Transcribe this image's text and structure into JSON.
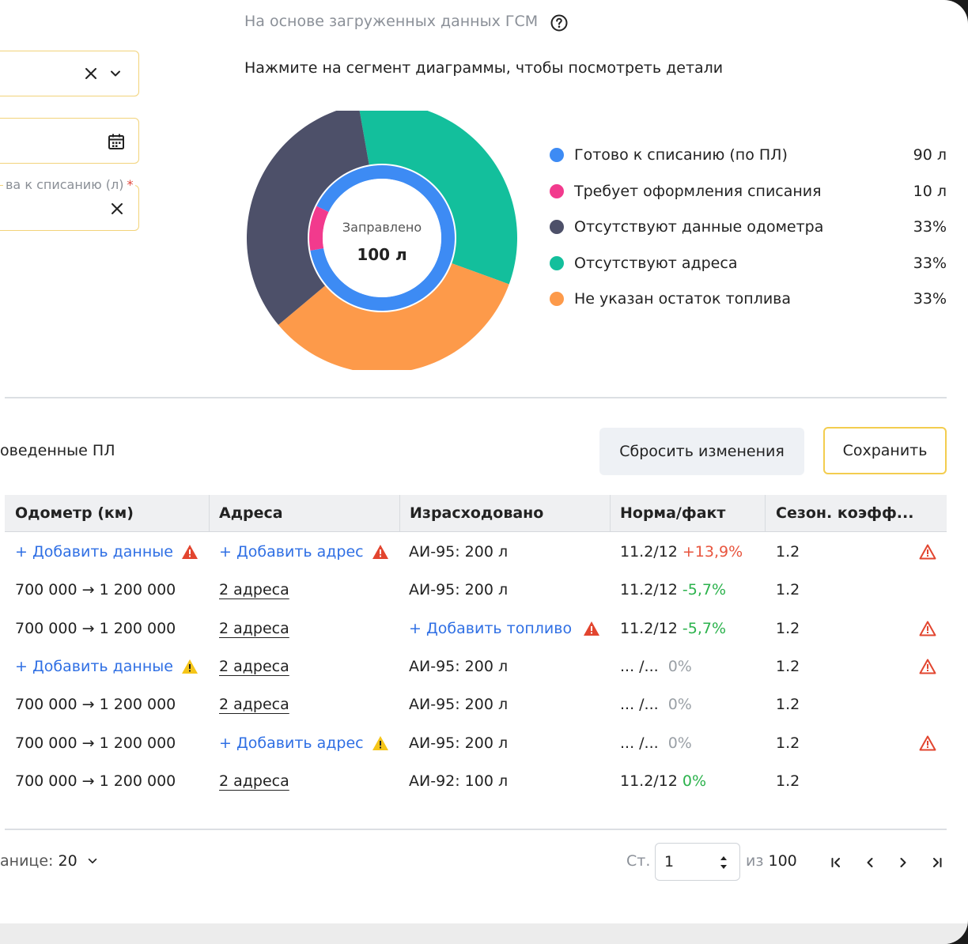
{
  "filters": {
    "field3_label": "ва к списанию (л)",
    "required_mark": "*"
  },
  "header": {
    "hint": "На основе загруженных данных ГСМ",
    "instruction": "Нажмите на сегмент диаграммы, чтобы посмотреть детали"
  },
  "donut": {
    "center_label": "Заправлено",
    "center_value": "100 л",
    "inner": [
      {
        "name": "Готово к списанию (по ПЛ)",
        "value": 90,
        "color": "#3d8bf4"
      },
      {
        "name": "Требует оформления списания",
        "value": 10,
        "color": "#f23a8d"
      }
    ],
    "outer": [
      {
        "name": "Отсутствуют адреса",
        "value": 33,
        "color": "#13bf9c"
      },
      {
        "name": "Не указан остаток топлива",
        "value": 33,
        "color": "#fd9a4a"
      },
      {
        "name": "Отсутствуют данные одометра",
        "value": 33,
        "color": "#4d5069"
      }
    ]
  },
  "legend": [
    {
      "label": "Готово к списанию (по ПЛ)",
      "value": "90 л",
      "color": "#3d8bf4"
    },
    {
      "label": "Требует оформления списания",
      "value": "10 л",
      "color": "#f23a8d"
    },
    {
      "label": "Отсутствуют данные одометра",
      "value": "33%",
      "color": "#4d5069"
    },
    {
      "label": "Отсутствуют адреса",
      "value": "33%",
      "color": "#13bf9c"
    },
    {
      "label": "Не указан остаток топлива",
      "value": "33%",
      "color": "#fd9a4a"
    }
  ],
  "section": {
    "title": "оведенные ПЛ",
    "reset_button": "Сбросить изменения",
    "save_button": "Сохранить"
  },
  "table": {
    "columns": [
      "Одометр (км)",
      "Адреса",
      "Израсходовано",
      "Норма/факт",
      "Сезон. коэфф..."
    ],
    "rows": [
      {
        "odometer": "+ Добавить данные",
        "odometer_link": true,
        "odometer_warn": "red",
        "address": "+ Добавить адрес",
        "address_link": true,
        "address_warn": "red",
        "fuel": "АИ-95: 200 л",
        "fuel_link": false,
        "fuel_warn": "",
        "norm": "11.2/12",
        "pct": "+13,9%",
        "pct_color": "red",
        "coef": "1.2",
        "row_warn": true
      },
      {
        "odometer": "700 000 → 1 200 000",
        "odometer_link": false,
        "odometer_warn": "",
        "address": "2 адреса",
        "address_link": false,
        "address_warn": "",
        "fuel": "АИ-95: 200 л",
        "fuel_link": false,
        "fuel_warn": "",
        "norm": "11.2/12",
        "pct": "-5,7%",
        "pct_color": "green",
        "coef": "1.2",
        "row_warn": false
      },
      {
        "odometer": "700 000 → 1 200 000",
        "odometer_link": false,
        "odometer_warn": "",
        "address": "2 адреса",
        "address_link": false,
        "address_warn": "",
        "fuel": "+ Добавить топливо",
        "fuel_link": true,
        "fuel_warn": "red",
        "norm": "11.2/12",
        "pct": "-5,7%",
        "pct_color": "green",
        "coef": "1.2",
        "row_warn": true
      },
      {
        "odometer": "+ Добавить данные",
        "odometer_link": true,
        "odometer_warn": "yellow",
        "address": "2 адреса",
        "address_link": false,
        "address_warn": "",
        "fuel": "АИ-95: 200 л",
        "fuel_link": false,
        "fuel_warn": "",
        "norm": "... /...",
        "pct": "0%",
        "pct_color": "grey",
        "coef": "1.2",
        "row_warn": true
      },
      {
        "odometer": "700 000 → 1 200 000",
        "odometer_link": false,
        "odometer_warn": "",
        "address": "2 адреса",
        "address_link": false,
        "address_warn": "",
        "fuel": "АИ-95: 200 л",
        "fuel_link": false,
        "fuel_warn": "",
        "norm": "... /...",
        "pct": "0%",
        "pct_color": "grey",
        "coef": "1.2",
        "row_warn": false
      },
      {
        "odometer": "700 000 → 1 200 000",
        "odometer_link": false,
        "odometer_warn": "",
        "address": "+ Добавить адрес",
        "address_link": true,
        "address_warn": "yellow",
        "fuel": "АИ-95: 200 л",
        "fuel_link": false,
        "fuel_warn": "",
        "norm": "... /...",
        "pct": "0%",
        "pct_color": "grey",
        "coef": "1.2",
        "row_warn": true
      },
      {
        "odometer": "700 000 → 1 200 000",
        "odometer_link": false,
        "odometer_warn": "",
        "address": "2 адреса",
        "address_link": false,
        "address_warn": "",
        "fuel": "АИ-92: 100 л",
        "fuel_link": false,
        "fuel_warn": "",
        "norm": "11.2/12",
        "pct": "0%",
        "pct_color": "green",
        "coef": "1.2",
        "row_warn": false
      }
    ]
  },
  "pagination": {
    "per_page_label": "анице:",
    "per_page_value": "20",
    "page_label": "Ст.",
    "current_page": "1",
    "of_label": "из",
    "total_pages": "100"
  },
  "colors": {
    "warn_red": "#e2452f",
    "warn_yellow": "#f5c518",
    "link": "#2f6fe4",
    "accent_border": "#f3cd4f"
  }
}
